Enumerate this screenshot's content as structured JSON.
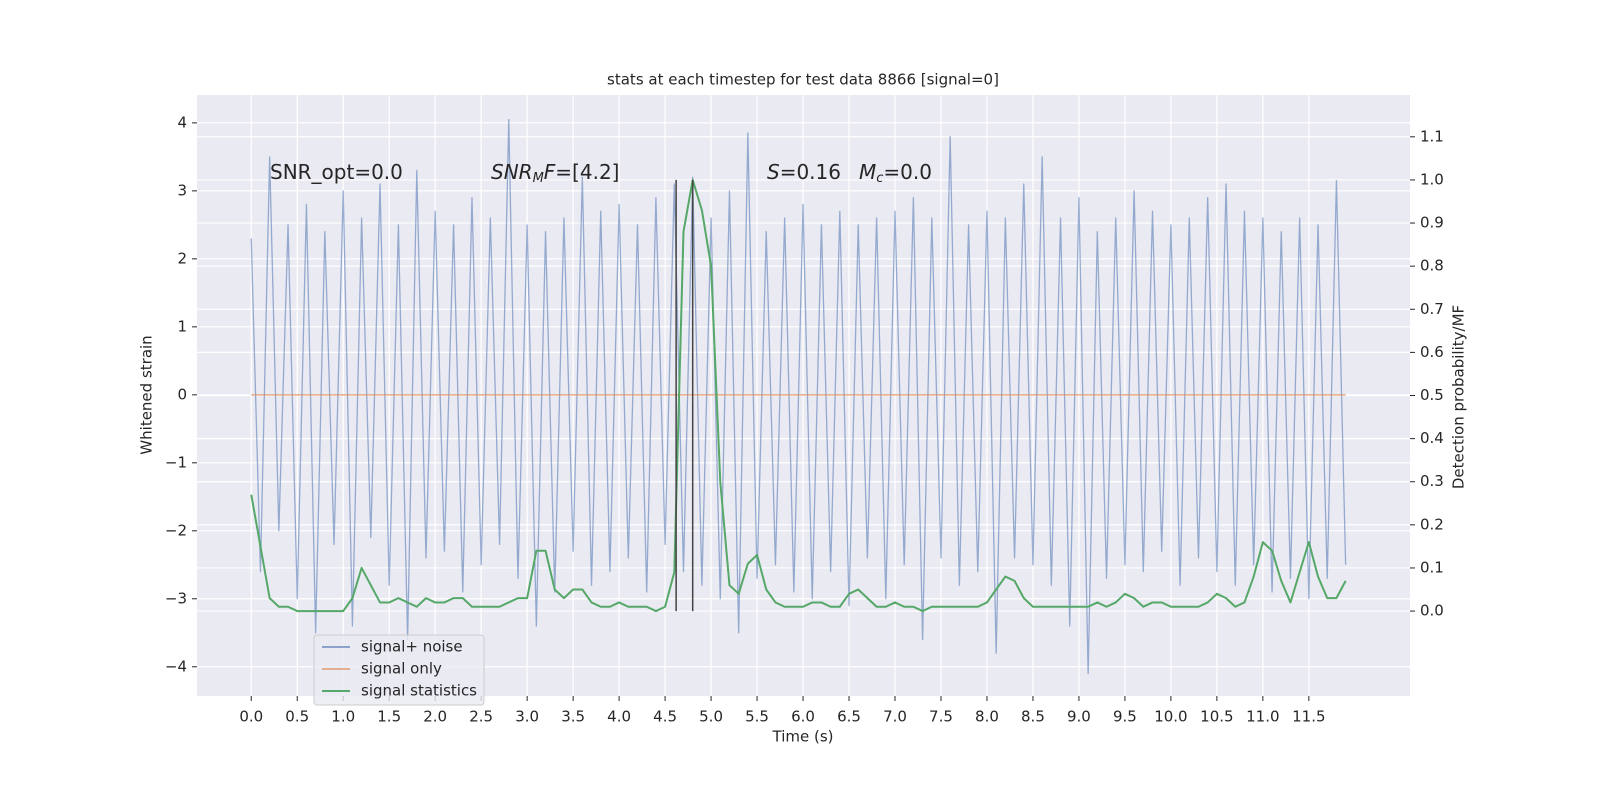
{
  "chart_data": {
    "type": "line",
    "title": "stats at each timestep for test data 8866 [signal=0]",
    "xlabel": "Time (s)",
    "ylabel": "Whitened strain",
    "y2label": "Detection probability/MF",
    "annotations": [
      {
        "parts": [
          {
            "text": "SNR_opt=0.0"
          }
        ]
      },
      {
        "parts": [
          {
            "text": "SNR",
            "italic": true
          },
          {
            "text": "M",
            "italic": true,
            "sub": true
          },
          {
            "text": "F",
            "italic": true
          },
          {
            "text": "=[4.2]"
          }
        ]
      },
      {
        "parts": [
          {
            "text": "S",
            "italic": true
          },
          {
            "text": "=0.16"
          }
        ]
      },
      {
        "parts": [
          {
            "text": "M",
            "italic": true
          },
          {
            "text": "c",
            "italic": true,
            "sub": true
          },
          {
            "text": "=0.0"
          }
        ]
      }
    ],
    "x": [
      0.0,
      0.1,
      0.2,
      0.3,
      0.4,
      0.5,
      0.6,
      0.7,
      0.8,
      0.9,
      1.0,
      1.1,
      1.2,
      1.3,
      1.4,
      1.5,
      1.6,
      1.7,
      1.8,
      1.9,
      2.0,
      2.1,
      2.2,
      2.3,
      2.4,
      2.5,
      2.6,
      2.7,
      2.8,
      2.9,
      3.0,
      3.1,
      3.2,
      3.3,
      3.4,
      3.5,
      3.6,
      3.7,
      3.8,
      3.9,
      4.0,
      4.1,
      4.2,
      4.3,
      4.4,
      4.5,
      4.6,
      4.7,
      4.8,
      4.9,
      5.0,
      5.1,
      5.2,
      5.3,
      5.4,
      5.5,
      5.6,
      5.7,
      5.8,
      5.9,
      6.0,
      6.1,
      6.2,
      6.3,
      6.4,
      6.5,
      6.6,
      6.7,
      6.8,
      6.9,
      7.0,
      7.1,
      7.2,
      7.3,
      7.4,
      7.5,
      7.6,
      7.7,
      7.8,
      7.9,
      8.0,
      8.1,
      8.2,
      8.3,
      8.4,
      8.5,
      8.6,
      8.7,
      8.8,
      8.9,
      9.0,
      9.1,
      9.2,
      9.3,
      9.4,
      9.5,
      9.6,
      9.7,
      9.8,
      9.9,
      10.0,
      10.1,
      10.2,
      10.3,
      10.4,
      10.5,
      10.6,
      10.7,
      10.8,
      10.9,
      11.0,
      11.1,
      11.2,
      11.3,
      11.4,
      11.5,
      11.6,
      11.7,
      11.8,
      11.9
    ],
    "series": [
      {
        "name": "signal+ noise",
        "color": "#4c72b0",
        "values": [
          2.3,
          -2.6,
          3.5,
          -2.0,
          2.5,
          -3.0,
          2.8,
          -3.5,
          2.4,
          -2.2,
          3.0,
          -3.4,
          2.6,
          -2.1,
          3.1,
          -2.8,
          2.5,
          -3.6,
          3.3,
          -2.4,
          2.7,
          -2.3,
          2.5,
          -2.9,
          2.9,
          -2.5,
          2.6,
          -2.2,
          4.05,
          -2.7,
          2.5,
          -3.4,
          2.4,
          -2.9,
          2.6,
          -2.3,
          3.2,
          -2.8,
          2.7,
          -2.6,
          2.8,
          -2.4,
          2.5,
          -2.9,
          2.9,
          -2.2,
          3.1,
          -2.6,
          3.2,
          -2.8,
          2.6,
          -3.0,
          3.0,
          -3.5,
          3.85,
          -2.7,
          2.4,
          -2.5,
          2.6,
          -2.9,
          2.8,
          -3.0,
          2.5,
          -2.6,
          2.7,
          -3.1,
          2.5,
          -2.4,
          2.6,
          -3.0,
          2.7,
          -2.5,
          2.9,
          -3.6,
          2.6,
          -2.4,
          3.8,
          -2.8,
          2.5,
          -2.6,
          2.7,
          -3.8,
          2.6,
          -2.4,
          3.1,
          -2.5,
          3.5,
          -2.8,
          2.6,
          -3.4,
          2.9,
          -4.1,
          2.4,
          -2.7,
          2.6,
          -2.5,
          3.0,
          -2.6,
          2.7,
          -2.3,
          2.5,
          -2.8,
          2.6,
          -2.4,
          2.9,
          -2.6,
          3.1,
          -2.8,
          2.7,
          -2.5,
          2.6,
          -2.9,
          2.4,
          -2.7,
          2.6,
          -3.0,
          2.5,
          -2.7,
          3.15,
          -2.5
        ]
      },
      {
        "name": "signal only",
        "color": "#dd8452",
        "values": [
          0,
          0,
          0,
          0,
          0,
          0,
          0,
          0,
          0,
          0,
          0,
          0,
          0,
          0,
          0,
          0,
          0,
          0,
          0,
          0,
          0,
          0,
          0,
          0,
          0,
          0,
          0,
          0,
          0,
          0,
          0,
          0,
          0,
          0,
          0,
          0,
          0,
          0,
          0,
          0,
          0,
          0,
          0,
          0,
          0,
          0,
          0,
          0,
          0,
          0,
          0,
          0,
          0,
          0,
          0,
          0,
          0,
          0,
          0,
          0,
          0,
          0,
          0,
          0,
          0,
          0,
          0,
          0,
          0,
          0,
          0,
          0,
          0,
          0,
          0,
          0,
          0,
          0,
          0,
          0,
          0,
          0,
          0,
          0,
          0,
          0,
          0,
          0,
          0,
          0,
          0,
          0,
          0,
          0,
          0,
          0,
          0,
          0,
          0,
          0,
          0,
          0,
          0,
          0,
          0,
          0,
          0,
          0,
          0,
          0,
          0,
          0,
          0,
          0,
          0,
          0,
          0,
          0,
          0,
          0
        ]
      },
      {
        "name": "signal statistics",
        "color": "#55a868",
        "axis": "y2",
        "values": [
          0.27,
          0.15,
          0.03,
          0.01,
          0.01,
          0.0,
          0.0,
          0.0,
          0.0,
          0.0,
          0.0,
          0.03,
          0.1,
          0.06,
          0.02,
          0.02,
          0.03,
          0.02,
          0.01,
          0.03,
          0.02,
          0.02,
          0.03,
          0.03,
          0.01,
          0.01,
          0.01,
          0.01,
          0.02,
          0.03,
          0.03,
          0.14,
          0.14,
          0.05,
          0.03,
          0.05,
          0.05,
          0.02,
          0.01,
          0.01,
          0.02,
          0.01,
          0.01,
          0.01,
          0.0,
          0.01,
          0.09,
          0.88,
          1.0,
          0.93,
          0.8,
          0.3,
          0.06,
          0.04,
          0.11,
          0.13,
          0.05,
          0.02,
          0.01,
          0.01,
          0.01,
          0.02,
          0.02,
          0.01,
          0.01,
          0.04,
          0.05,
          0.03,
          0.01,
          0.01,
          0.02,
          0.01,
          0.01,
          0.0,
          0.01,
          0.01,
          0.01,
          0.01,
          0.01,
          0.01,
          0.02,
          0.05,
          0.08,
          0.07,
          0.03,
          0.01,
          0.01,
          0.01,
          0.01,
          0.01,
          0.01,
          0.01,
          0.02,
          0.01,
          0.02,
          0.04,
          0.03,
          0.01,
          0.02,
          0.02,
          0.01,
          0.01,
          0.01,
          0.01,
          0.02,
          0.04,
          0.03,
          0.01,
          0.02,
          0.08,
          0.16,
          0.14,
          0.07,
          0.02,
          0.09,
          0.16,
          0.08,
          0.03,
          0.03,
          0.07
        ]
      }
    ],
    "vlines": {
      "x": [
        4.62,
        4.8
      ],
      "y2range": [
        0,
        1
      ],
      "color": "#444444"
    },
    "xlim": [
      -0.59,
      12.6
    ],
    "ylim": [
      -4.43,
      4.41
    ],
    "y2lim": [
      -0.197,
      1.197
    ],
    "xticks": [
      {
        "value": 0,
        "label": "0.0"
      },
      0.5,
      {
        "value": 1,
        "label": "1.0"
      },
      1.5,
      {
        "value": 2,
        "label": "2.0"
      },
      2.5,
      {
        "value": 3,
        "label": "3.0"
      },
      3.5,
      {
        "value": 4,
        "label": "4.0"
      },
      4.5,
      {
        "value": 5,
        "label": "5.0"
      },
      5.5,
      {
        "value": 6,
        "label": "6.0"
      },
      6.5,
      {
        "value": 7,
        "label": "7.0"
      },
      7.5,
      {
        "value": 8,
        "label": "8.0"
      },
      8.5,
      {
        "value": 9,
        "label": "9.0"
      },
      9.5,
      {
        "value": 10,
        "label": "10.0"
      },
      10.5,
      {
        "value": 11,
        "label": "11.0"
      },
      11.5
    ],
    "yticks": [
      {
        "value": -4,
        "label": "−4"
      },
      {
        "value": -3,
        "label": "−3"
      },
      {
        "value": -2,
        "label": "−2"
      },
      {
        "value": -1,
        "label": "−1"
      },
      0,
      1,
      2,
      3,
      4
    ],
    "y2ticks": [
      {
        "value": 0,
        "label": "0.0"
      },
      0.1,
      0.2,
      0.3,
      0.4,
      0.5,
      0.6,
      0.7,
      0.8,
      0.9,
      {
        "value": 1,
        "label": "1.0"
      },
      1.1
    ],
    "grid": true,
    "legend": "lower left"
  }
}
